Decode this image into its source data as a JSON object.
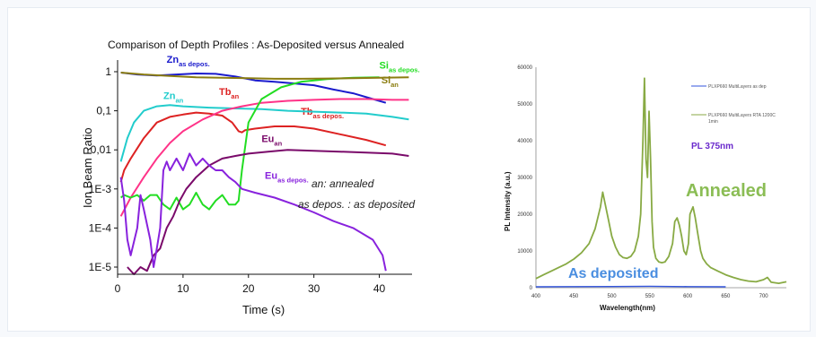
{
  "chart_data": [
    {
      "type": "line",
      "title": "Comparison of Depth Profiles : As-Deposited versus Annealed",
      "xlabel": "Time (s)",
      "ylabel": "Ion Beam Ratio",
      "xlim": [
        0,
        45
      ],
      "ylim": [
        1e-05,
        1
      ],
      "y_scale": "log",
      "x_ticks": [
        "0",
        "10",
        "20",
        "30",
        "40"
      ],
      "x_tick_values": [
        0,
        10,
        20,
        30,
        40
      ],
      "y_ticks": [
        "1",
        "0,1",
        "0,01",
        "1E-3",
        "1E-4",
        "1E-5"
      ],
      "y_tick_values": [
        1,
        0.1,
        0.01,
        0.001,
        0.0001,
        1e-05
      ],
      "annotations": [
        {
          "main": "Zn",
          "sub": "as depos.",
          "color": "#1a1acc",
          "x": 7.5,
          "y": 1.7
        },
        {
          "main": "Si",
          "sub": "as depos.",
          "color": "#22dd22",
          "x": 40,
          "y": 1.2
        },
        {
          "main": "Si",
          "sub": "an",
          "color": "#8b7d10",
          "x": 40.3,
          "y": 0.5
        },
        {
          "main": "Zn",
          "sub": "an",
          "color": "#22cccc",
          "x": 7,
          "y": 0.2
        },
        {
          "main": "Tb",
          "sub": "an",
          "color": "#dd2222",
          "x": 15.5,
          "y": 0.25
        },
        {
          "main": "Tb",
          "sub": "as depos.",
          "color": "#dd2222",
          "x": 28,
          "y": 0.08
        },
        {
          "main": "Eu",
          "sub": "an",
          "color": "#7a0a6a",
          "x": 22,
          "y": 0.016
        },
        {
          "main": "Eu",
          "sub": "as depos.",
          "color": "#8822dd",
          "x": 22.5,
          "y": 0.0018
        }
      ],
      "notes": [
        "an: annealed",
        "as depos. : as deposited"
      ],
      "series": [
        {
          "color": "#1a1acc",
          "x": [
            0.5,
            3,
            6,
            9,
            12,
            15,
            18,
            21,
            24,
            27,
            30,
            33,
            36,
            39,
            41
          ],
          "y": [
            0.95,
            0.85,
            0.8,
            0.85,
            0.9,
            0.88,
            0.75,
            0.6,
            0.55,
            0.5,
            0.45,
            0.35,
            0.28,
            0.2,
            0.16
          ]
        },
        {
          "color": "#22cccc",
          "x": [
            0.5,
            1.5,
            2.5,
            4,
            6,
            8,
            10,
            14,
            18,
            22,
            26,
            30,
            34,
            38,
            42,
            44.5
          ],
          "y": [
            0.005,
            0.02,
            0.05,
            0.1,
            0.13,
            0.14,
            0.13,
            0.12,
            0.115,
            0.11,
            0.1,
            0.095,
            0.09,
            0.085,
            0.07,
            0.06
          ]
        },
        {
          "color": "#dd2222",
          "x": [
            0.5,
            1,
            2,
            4,
            6,
            8,
            10,
            12,
            14,
            16,
            17.5,
            18.5,
            19,
            19.5,
            21,
            24,
            27,
            30,
            34,
            38,
            41
          ],
          "y": [
            0.0015,
            0.003,
            0.006,
            0.02,
            0.05,
            0.07,
            0.08,
            0.09,
            0.085,
            0.075,
            0.05,
            0.03,
            0.028,
            0.032,
            0.035,
            0.04,
            0.04,
            0.035,
            0.025,
            0.018,
            0.013
          ]
        },
        {
          "color": "#ff3388",
          "x": [
            0.5,
            2,
            4,
            6,
            8,
            10,
            13,
            16,
            19,
            22,
            26,
            30,
            34,
            38,
            42,
            44.5
          ],
          "y": [
            0.0002,
            0.0006,
            0.002,
            0.006,
            0.015,
            0.03,
            0.06,
            0.1,
            0.13,
            0.16,
            0.18,
            0.19,
            0.2,
            0.2,
            0.19,
            0.19
          ]
        },
        {
          "color": "#22dd22",
          "x": [
            0.5,
            1,
            2,
            3,
            4,
            5,
            6,
            7,
            8,
            9,
            10,
            11,
            12,
            13,
            14,
            15,
            16,
            17,
            18,
            18.5,
            19,
            20,
            22,
            25,
            28,
            32,
            36,
            40
          ],
          "y": [
            0.0006,
            0.0007,
            0.0006,
            0.0007,
            0.0005,
            0.0007,
            0.0007,
            0.0004,
            0.0003,
            0.0006,
            0.0003,
            0.0004,
            0.0008,
            0.0004,
            0.0003,
            0.0005,
            0.0007,
            0.0004,
            0.0004,
            0.0005,
            0.003,
            0.05,
            0.2,
            0.4,
            0.55,
            0.65,
            0.7,
            0.72
          ]
        },
        {
          "color": "#8b7d10",
          "x": [
            0.5,
            4,
            8,
            12,
            16,
            20,
            24,
            28,
            32,
            36,
            40,
            44.5
          ],
          "y": [
            0.95,
            0.85,
            0.78,
            0.72,
            0.7,
            0.68,
            0.66,
            0.66,
            0.67,
            0.68,
            0.7,
            0.72
          ]
        },
        {
          "color": "#7a0a6a",
          "x": [
            1.5,
            2.5,
            3.5,
            4.5,
            5.5,
            6.5,
            7.5,
            8.5,
            9.5,
            10.5,
            12,
            14,
            16,
            18,
            20,
            23,
            26,
            30,
            34,
            38,
            42,
            44.5
          ],
          "y": [
            1e-05,
            5e-06,
            1e-05,
            8e-06,
            2e-05,
            3e-05,
            0.0001,
            0.0002,
            0.0005,
            0.001,
            0.002,
            0.004,
            0.006,
            0.007,
            0.008,
            0.009,
            0.01,
            0.0095,
            0.009,
            0.0085,
            0.008,
            0.007
          ]
        },
        {
          "color": "#8822dd",
          "x": [
            0.5,
            1,
            1.5,
            2,
            3,
            3.5,
            4,
            5,
            5.5,
            6,
            6.5,
            7,
            7.5,
            8,
            9,
            10,
            11,
            12,
            13,
            14,
            15,
            16,
            17,
            18,
            19,
            21,
            24,
            27,
            30,
            33,
            36,
            39,
            40.5,
            41
          ],
          "y": [
            0.002,
            0.0005,
            5e-05,
            2e-05,
            0.0001,
            0.0007,
            0.0003,
            5e-05,
            1e-05,
            3e-05,
            0.0001,
            0.003,
            0.005,
            0.003,
            0.006,
            0.003,
            0.008,
            0.004,
            0.006,
            0.004,
            0.003,
            0.003,
            0.002,
            0.0015,
            0.001,
            0.0008,
            0.0006,
            0.0004,
            0.00025,
            0.00015,
            0.0001,
            5e-05,
            2e-05,
            8e-06
          ]
        }
      ]
    },
    {
      "type": "line",
      "xlabel": "Wavelength(nm)",
      "ylabel": "PL Intensity  (a.u.)",
      "xlim": [
        400,
        730
      ],
      "ylim": [
        0,
        60000
      ],
      "x_ticks": [
        "400",
        "450",
        "500",
        "550",
        "600",
        "650",
        "700"
      ],
      "x_tick_values": [
        400,
        450,
        500,
        550,
        600,
        650,
        700
      ],
      "y_ticks": [
        "0",
        "10000",
        "20000",
        "30000",
        "40000",
        "50000",
        "60000"
      ],
      "y_tick_values": [
        0,
        10000,
        20000,
        30000,
        40000,
        50000,
        60000
      ],
      "legend": [
        {
          "label": "PLXP660 MultiLayers as dep",
          "color": "#3355dd"
        },
        {
          "label": "PLXP660 MultiLayers RTA 1200C",
          "label2": "1min",
          "color": "#88aa44"
        }
      ],
      "annotation": "PL 375nm",
      "annotation_color": "#6a2acc",
      "text_labels": [
        {
          "text": "Annealed",
          "color": "#8bbd55"
        },
        {
          "text": "As deposited",
          "color": "#4a8ee0"
        }
      ],
      "series": [
        {
          "name": "PLXP660 MultiLayers RTA 1200C 1min",
          "color": "#88aa44",
          "x": [
            400,
            410,
            420,
            430,
            440,
            450,
            460,
            470,
            478,
            485,
            488,
            492,
            496,
            500,
            505,
            510,
            515,
            520,
            525,
            530,
            535,
            538,
            541,
            543,
            545,
            547,
            549,
            551,
            553,
            555,
            558,
            562,
            566,
            570,
            575,
            580,
            583,
            586,
            589,
            592,
            595,
            598,
            601,
            603,
            607,
            610,
            613,
            617,
            620,
            625,
            630,
            640,
            650,
            660,
            670,
            680,
            690,
            700,
            705,
            710,
            720,
            730
          ],
          "y": [
            2500,
            3500,
            4500,
            5500,
            6500,
            7800,
            9500,
            12000,
            16000,
            22000,
            26000,
            22000,
            18000,
            14000,
            11000,
            9000,
            8200,
            8000,
            8500,
            10000,
            14000,
            20000,
            40000,
            57000,
            35000,
            30000,
            48000,
            35000,
            18000,
            11000,
            8000,
            7000,
            6800,
            7000,
            8500,
            12000,
            18000,
            19000,
            17000,
            14000,
            10000,
            9000,
            12000,
            20000,
            22000,
            19000,
            15000,
            10000,
            8000,
            6500,
            5500,
            4500,
            3500,
            2800,
            2200,
            1800,
            1600,
            2200,
            2800,
            1500,
            1200,
            1600
          ]
        },
        {
          "name": "PLXP660 MultiLayers as dep",
          "color": "#3355dd",
          "x": [
            400,
            450,
            500,
            550,
            600,
            650
          ],
          "y": [
            250,
            300,
            320,
            400,
            300,
            250
          ]
        }
      ]
    }
  ]
}
